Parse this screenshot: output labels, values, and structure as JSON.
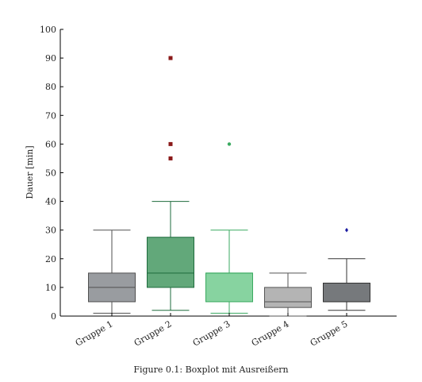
{
  "chart_data": {
    "type": "boxplot",
    "ylabel": "Dauer [min]",
    "ylim": [
      0,
      100
    ],
    "yticks": [
      0,
      10,
      20,
      30,
      40,
      50,
      60,
      70,
      80,
      90,
      100
    ],
    "categories": [
      "Gruppe 1",
      "Gruppe 2",
      "Gruppe 3",
      "Gruppe 4",
      "Gruppe 5"
    ],
    "boxes": [
      {
        "name": "Gruppe 1",
        "whisker_low": 1,
        "q1": 5,
        "median": 10,
        "q3": 15,
        "whisker_high": 30,
        "outliers": [],
        "fill": "#999ca0",
        "edge": "#505050",
        "outlier_color": "#505050",
        "outlier_marker": "circle"
      },
      {
        "name": "Gruppe 2",
        "whisker_low": 2,
        "q1": 10,
        "median": 15,
        "q3": 27.5,
        "whisker_high": 40,
        "outliers": [
          55,
          60,
          90
        ],
        "fill": "#62a87a",
        "edge": "#1e6b3c",
        "outlier_color": "#8b1a1a",
        "outlier_marker": "square"
      },
      {
        "name": "Gruppe 3",
        "whisker_low": 1,
        "q1": 5,
        "median": 15,
        "q3": 15,
        "whisker_high": 30,
        "outliers": [
          60
        ],
        "fill": "#87d3a0",
        "edge": "#3aaa60",
        "outlier_color": "#3aaa60",
        "outlier_marker": "circle"
      },
      {
        "name": "Gruppe 4",
        "whisker_low": 0,
        "q1": 3,
        "median": 5,
        "q3": 10,
        "whisker_high": 15,
        "outliers": [],
        "fill": "#b4b4b4",
        "edge": "#555555",
        "outlier_color": "#555555",
        "outlier_marker": "circle"
      },
      {
        "name": "Gruppe 5",
        "whisker_low": 2,
        "q1": 5,
        "median": 5,
        "q3": 11.5,
        "whisker_high": 20,
        "outliers": [
          30
        ],
        "fill": "#76797c",
        "edge": "#333333",
        "outlier_color": "#1a1aa0",
        "outlier_marker": "diamond"
      }
    ],
    "caption": "Figure 0.1: Boxplot mit Ausreißern",
    "grid": false,
    "legend": "none"
  }
}
